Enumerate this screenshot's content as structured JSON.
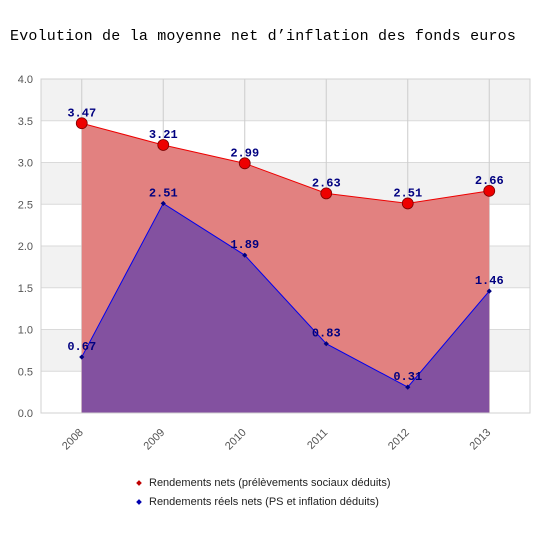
{
  "chart_data": {
    "type": "area",
    "title": "Evolution de la moyenne net d’inflation des fonds euros",
    "categories": [
      "2008",
      "2009",
      "2010",
      "2011",
      "2012",
      "2013"
    ],
    "series": [
      {
        "name": "Rendements nets (prélèvements sociaux déduits)",
        "values": [
          3.47,
          3.21,
          2.99,
          2.63,
          2.51,
          2.66
        ],
        "labels": [
          "3.47",
          "3.21",
          "2.99",
          "2.63",
          "2.51",
          "2.66"
        ],
        "line_color": "#ee0000",
        "fill_color": "#e28180",
        "marker_color": "#ee0000",
        "legend_marker_color": "#c00000",
        "marker": "circle"
      },
      {
        "name": "Rendements réels nets (PS et inflation déduits)",
        "values": [
          0.67,
          2.51,
          1.89,
          0.83,
          0.31,
          1.46
        ],
        "labels": [
          "0.67",
          "2.51",
          "1.89",
          "0.83",
          "0.31",
          "1.46"
        ],
        "line_color": "#0000ee",
        "fill_color": "#7c4da3",
        "marker_color": "#000080",
        "legend_marker_color": "#0000b0",
        "marker": "diamond"
      }
    ],
    "ylim": [
      0,
      4
    ],
    "yticks": [
      "0.0",
      "0.5",
      "1.0",
      "1.5",
      "2.0",
      "2.5",
      "3.0",
      "3.5",
      "4.0"
    ],
    "grid": true,
    "legend_position": "bottom",
    "data_label_color": "#000080"
  }
}
